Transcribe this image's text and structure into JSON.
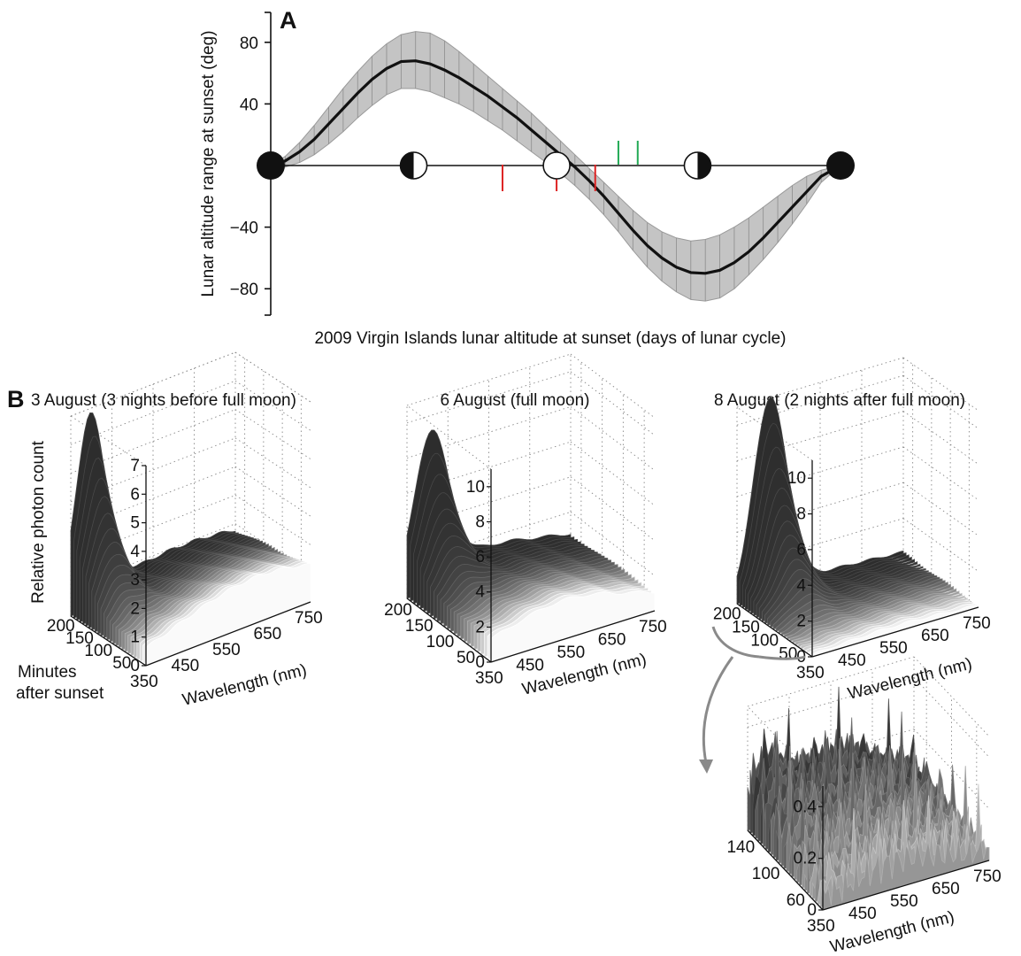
{
  "chart_data": [
    {
      "panel": "A",
      "type": "line",
      "xlabel": "2009 Virgin Islands lunar altitude at sunset (days of lunar cycle)",
      "ylabel": "Lunar altitude range at sunset (deg)",
      "ylim": [
        -92,
        92
      ],
      "yticks": [
        80,
        40,
        -40,
        -80
      ],
      "ytick_labels": [
        "80",
        "40",
        "−40",
        "−80"
      ],
      "xlim": [
        0,
        29.5
      ],
      "x": [
        0,
        0.75,
        1.5,
        2.25,
        3,
        3.75,
        4.5,
        5.25,
        6,
        6.75,
        7.5,
        8.25,
        9,
        9.75,
        10.5,
        11.25,
        12,
        12.75,
        13.5,
        14.25,
        15,
        15.75,
        16.5,
        17.25,
        18,
        18.75,
        19.5,
        20.25,
        21,
        21.75,
        22.5,
        23.25,
        24,
        24.75,
        25.5,
        26.25,
        27,
        27.75,
        28.5,
        29.5
      ],
      "series": [
        {
          "role": "mean",
          "values": [
            0,
            3,
            9,
            17,
            27,
            37,
            47,
            56,
            63,
            67.5,
            68,
            66,
            62,
            57,
            51,
            45,
            38,
            31,
            23,
            15,
            7,
            -1,
            -10,
            -20,
            -31,
            -42,
            -52,
            -60,
            -66,
            -69.5,
            -70,
            -68,
            -63,
            -56,
            -47,
            -37,
            -27,
            -17,
            -7,
            0
          ]
        },
        {
          "role": "range_upper",
          "values": [
            0,
            6,
            15,
            26,
            38,
            50,
            61,
            71,
            79,
            85,
            87,
            86,
            81,
            74,
            66,
            58,
            50,
            42,
            34,
            25,
            16,
            7,
            -2,
            -11,
            -20,
            -29,
            -37,
            -43,
            -47,
            -49,
            -48,
            -45,
            -40,
            -34,
            -27,
            -20,
            -13,
            -7,
            -3,
            0
          ]
        },
        {
          "role": "range_lower",
          "values": [
            0,
            -1,
            2,
            7,
            14,
            22,
            31,
            39,
            46,
            50,
            50,
            48,
            44,
            40,
            35,
            29,
            23,
            16,
            9,
            2,
            -5,
            -13,
            -22,
            -32,
            -43,
            -55,
            -66,
            -75,
            -82,
            -87,
            -88,
            -86,
            -80,
            -71,
            -61,
            -50,
            -38,
            -25,
            -11,
            0
          ]
        }
      ],
      "moon_phases": [
        {
          "day": 0,
          "phase": "new"
        },
        {
          "day": 7.4,
          "phase": "first-quarter"
        },
        {
          "day": 14.8,
          "phase": "full"
        },
        {
          "day": 22.1,
          "phase": "last-quarter"
        },
        {
          "day": 29.5,
          "phase": "new"
        }
      ],
      "markers": [
        {
          "day": 12.0,
          "color": "#dd2222",
          "side": "below"
        },
        {
          "day": 14.8,
          "color": "#dd2222",
          "side": "below"
        },
        {
          "day": 16.8,
          "color": "#dd2222",
          "side": "below"
        },
        {
          "day": 18.0,
          "color": "#22aa55",
          "side": "above"
        },
        {
          "day": 19.0,
          "color": "#22aa55",
          "side": "above"
        }
      ]
    },
    {
      "panel": "B",
      "type": "surface",
      "title": "3 August (3 nights before full moon)",
      "xlabel": "Wavelength (nm)",
      "ylabel": "Minutes after sunset",
      "zlabel": "Relative photon count",
      "xticks": [
        "350",
        "450",
        "550",
        "650",
        "750"
      ],
      "yticks": [
        "50",
        "100",
        "150",
        "200"
      ],
      "zticks": [
        "0",
        "1",
        "2",
        "3",
        "4",
        "5",
        "6",
        "7"
      ],
      "peak": 6.3,
      "peak_wavelength_nm": 420
    },
    {
      "panel": "B",
      "type": "surface",
      "title": "6 August (full moon)",
      "xlabel": "Wavelength (nm)",
      "zticks": [
        "0",
        "2",
        "4",
        "6",
        "8",
        "10"
      ],
      "xticks": [
        "350",
        "450",
        "550",
        "650",
        "750"
      ],
      "yticks": [
        "50",
        "100",
        "150",
        "200"
      ],
      "peak": 8,
      "peak_wavelength_nm": 420
    },
    {
      "panel": "B",
      "type": "surface",
      "title": "8 August (2 nights after full moon)",
      "xlabel": "Wavelength (nm)",
      "zticks": [
        "0",
        "2",
        "4",
        "6",
        "8",
        "10"
      ],
      "xticks": [
        "350",
        "450",
        "550",
        "650",
        "750"
      ],
      "yticks": [
        "50",
        "100",
        "150",
        "200"
      ],
      "peak": 10.8,
      "peak_wavelength_nm": 450
    },
    {
      "panel": "B",
      "type": "surface",
      "title": "",
      "xlabel": "Wavelength (nm)",
      "zticks": [
        "0",
        "0.2",
        "0.4"
      ],
      "xticks": [
        "350",
        "450",
        "550",
        "650",
        "750"
      ],
      "yticks": [
        "60",
        "100",
        "140"
      ],
      "peak": 0.4,
      "peak_wavelength_nm": 420
    }
  ],
  "labels": {
    "panel_a": "A",
    "panel_b": "B"
  }
}
